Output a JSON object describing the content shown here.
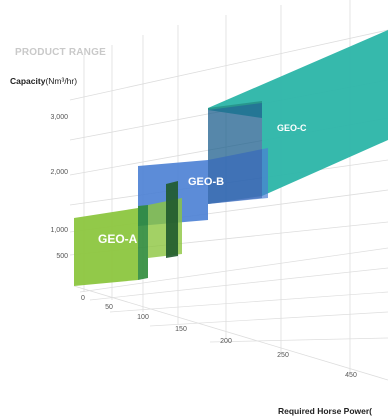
{
  "header": {
    "title": "PRODUCT RANGE"
  },
  "chart_data": {
    "type": "area",
    "title": "PRODUCT RANGE",
    "ylabel_bold": "Capacity",
    "ylabel_unit": "(Nm³/hr)",
    "xlabel": "Required Horse Power(",
    "y_ticks": [
      "500",
      "1,000",
      "2,000",
      "3,000"
    ],
    "x_ticks": [
      "0",
      "50",
      "100",
      "150",
      "200",
      "250",
      "450"
    ],
    "products": [
      {
        "name": "GEO-A",
        "hp_range": [
          0,
          150
        ],
        "capacity_range": [
          500,
          1100
        ],
        "color": "#8cc63f",
        "dark_color": "#2e8b3a"
      },
      {
        "name": "GEO-B",
        "hp_range": [
          100,
          300
        ],
        "capacity_range": [
          1100,
          2200
        ],
        "color": "#4a7fd4",
        "dark_color": "#1f4e9e"
      },
      {
        "name": "GEO-C",
        "hp_range": [
          150,
          450
        ],
        "capacity_range": [
          2000,
          3500
        ],
        "color": "#2bb5a8",
        "dark_color": "#1e7c76"
      }
    ],
    "grid": true
  }
}
